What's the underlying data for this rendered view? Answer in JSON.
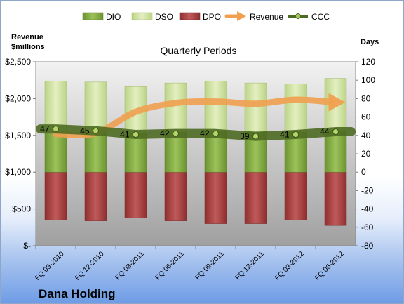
{
  "chart_data": {
    "type": "bar",
    "title": "Quarterly Periods",
    "company": "Dana Holding",
    "left_axis_label_line1": "Revenue",
    "left_axis_label_line2": "$millions",
    "right_axis_label": "Days",
    "categories": [
      "FQ 09-2010",
      "FQ 12-2010",
      "FQ 03-2011",
      "FQ 06-2011",
      "FQ 09-2011",
      "FQ 12-2011",
      "FQ 03-2012",
      "FQ 06-2012"
    ],
    "left_ticks": [
      "$-",
      "$500",
      "$1,000",
      "$1,500",
      "$2,000",
      "$2,500"
    ],
    "left_ylim": [
      0,
      2500
    ],
    "right_ticks": [
      "-80",
      "-60",
      "-40",
      "-20",
      "0",
      "20",
      "40",
      "60",
      "80",
      "100",
      "120"
    ],
    "right_ylim": [
      -80,
      120
    ],
    "grid": false,
    "legend_position": "top",
    "series": [
      {
        "name": "DIO",
        "axis": "right",
        "type": "stacked-bar",
        "color": "#7aa03c",
        "values": [
          43,
          43,
          43,
          44,
          45,
          44,
          44,
          45
        ]
      },
      {
        "name": "DSO",
        "axis": "right",
        "type": "stacked-bar",
        "color": "#cfe29e",
        "values": [
          56,
          55,
          50,
          53,
          54,
          53,
          52,
          57
        ]
      },
      {
        "name": "DPO",
        "axis": "right",
        "type": "negative-bar",
        "color": "#a83e3e",
        "values": [
          -52,
          -53,
          -50,
          -53,
          -56,
          -56,
          -52,
          -58
        ]
      },
      {
        "name": "Revenue",
        "axis": "left",
        "type": "arrow-line",
        "color": "#f0a050",
        "values": [
          1520,
          1530,
          1820,
          1940,
          1960,
          1930,
          1985,
          1950
        ]
      },
      {
        "name": "CCC",
        "axis": "right",
        "type": "line",
        "color": "#5e7b2c",
        "values": [
          47,
          45,
          41,
          42,
          42,
          39,
          41,
          44
        ],
        "labels": [
          "47",
          "45",
          "41",
          "42",
          "42",
          "39",
          "41",
          "44"
        ]
      }
    ]
  }
}
